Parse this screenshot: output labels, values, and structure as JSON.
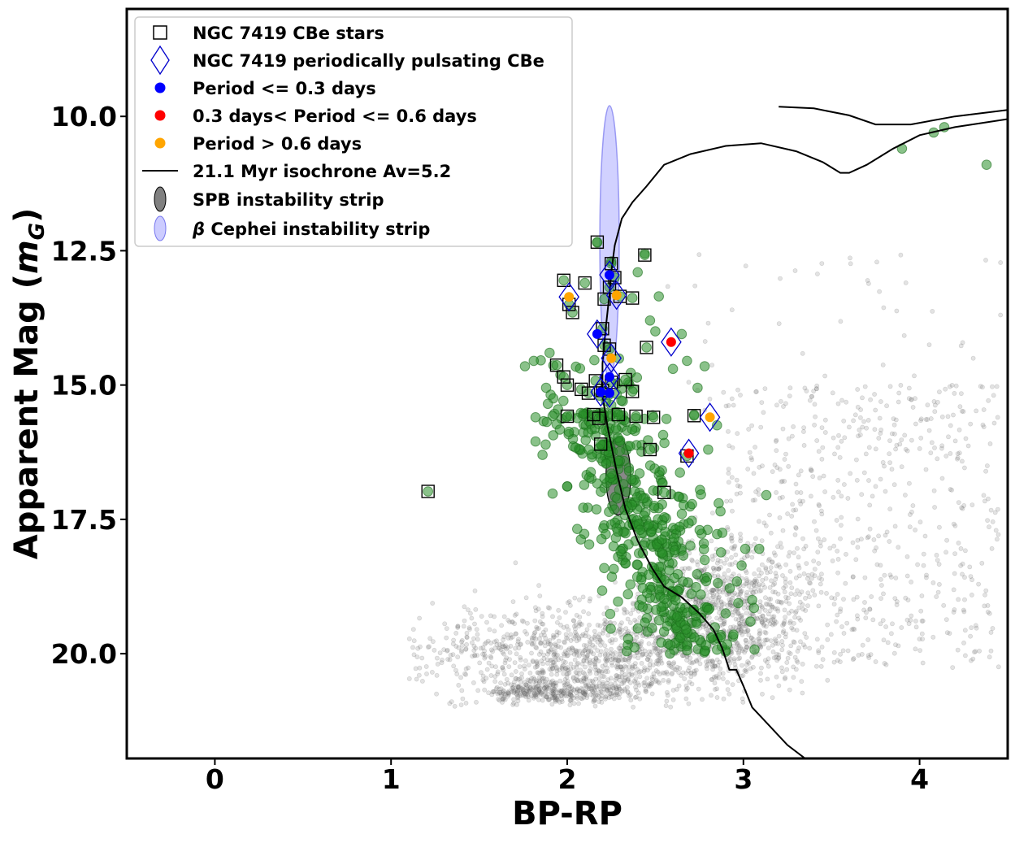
{
  "chart_data": {
    "type": "scatter",
    "xlabel": "BP-RP",
    "ylabel": "Apparent Mag (",
    "ylabel_symbol": "m",
    "ylabel_subscript": "G",
    "ylabel_close": ")",
    "xlim": [
      -0.5,
      4.5
    ],
    "ylim_inverted": [
      8.0,
      21.95
    ],
    "x_ticks": [
      {
        "value": 0,
        "label": "0"
      },
      {
        "value": 1,
        "label": "1"
      },
      {
        "value": 2,
        "label": "2"
      },
      {
        "value": 3,
        "label": "3"
      },
      {
        "value": 4,
        "label": "4"
      }
    ],
    "y_ticks": [
      {
        "value": 10.0,
        "label": "10.0"
      },
      {
        "value": 12.5,
        "label": "12.5"
      },
      {
        "value": 15.0,
        "label": "15.0"
      },
      {
        "value": 17.5,
        "label": "17.5"
      },
      {
        "value": 20.0,
        "label": "20.0"
      }
    ],
    "legend": {
      "position": "upper-left",
      "entries": [
        {
          "label": "NGC 7419 CBe stars",
          "marker": "square-open"
        },
        {
          "label": "NGC 7419 periodically pulsating CBe",
          "marker": "diamond-open"
        },
        {
          "label": "Period <= 0.3 days",
          "marker": "dot-blue"
        },
        {
          "label": "0.3 days< Period <= 0.6 days",
          "marker": "dot-red"
        },
        {
          "label": "Period > 0.6 days",
          "marker": "dot-orange"
        },
        {
          "label": "21.1 Myr isochrone Av=5.2",
          "marker": "line"
        },
        {
          "label": "SPB instability strip",
          "marker": "ellipse-gray"
        },
        {
          "label_prefix": "β",
          "label": " Cephei instability strip",
          "marker": "ellipse-blue"
        }
      ]
    },
    "colors": {
      "field": "#7f7f7f",
      "member": "#2a8f2a",
      "square": "#000000",
      "diamond": "#0000cc",
      "blue": "#0000ff",
      "red": "#ff0000",
      "orange": "#ffa500",
      "isochrone": "#000000",
      "spb": "#555555",
      "beta_cep": "#9999ff"
    },
    "spb_strip": {
      "cx": 2.29,
      "cy": 16.7,
      "rx": 0.07,
      "ry": 0.72
    },
    "beta_cep_strip": {
      "cx": 2.24,
      "cy": 12.35,
      "rx": 0.055,
      "ry": 2.55
    },
    "isochrone_upper": [
      [
        2.25,
        12.9
      ],
      [
        2.27,
        12.4
      ],
      [
        2.31,
        11.9
      ],
      [
        2.37,
        11.6
      ],
      [
        2.45,
        11.3
      ],
      [
        2.55,
        10.9
      ],
      [
        2.7,
        10.7
      ],
      [
        2.9,
        10.55
      ],
      [
        3.1,
        10.5
      ],
      [
        3.3,
        10.65
      ],
      [
        3.45,
        10.85
      ],
      [
        3.55,
        11.05
      ],
      [
        3.6,
        11.05
      ],
      [
        3.7,
        10.9
      ],
      [
        3.85,
        10.6
      ],
      [
        4.0,
        10.35
      ],
      [
        4.2,
        10.2
      ],
      [
        4.5,
        10.05
      ]
    ],
    "isochrone_top": [
      [
        3.2,
        9.82
      ],
      [
        3.4,
        9.85
      ],
      [
        3.6,
        9.98
      ],
      [
        3.75,
        10.15
      ],
      [
        3.95,
        10.15
      ],
      [
        4.2,
        10.0
      ],
      [
        4.5,
        9.88
      ]
    ],
    "isochrone_lower": [
      [
        2.25,
        12.9
      ],
      [
        2.24,
        13.3
      ],
      [
        2.22,
        13.9
      ],
      [
        2.2,
        14.6
      ],
      [
        2.2,
        15.2
      ],
      [
        2.23,
        15.8
      ],
      [
        2.28,
        16.6
      ],
      [
        2.33,
        17.3
      ],
      [
        2.4,
        17.9
      ],
      [
        2.48,
        18.4
      ],
      [
        2.55,
        18.75
      ],
      [
        2.65,
        18.95
      ],
      [
        2.75,
        19.25
      ],
      [
        2.83,
        19.55
      ],
      [
        2.88,
        19.9
      ],
      [
        2.92,
        20.3
      ],
      [
        2.96,
        20.3
      ],
      [
        3.0,
        20.6
      ],
      [
        3.05,
        21.0
      ],
      [
        3.15,
        21.35
      ],
      [
        3.25,
        21.7
      ],
      [
        3.37,
        22.0
      ]
    ],
    "cbe_squares": [
      [
        2.17,
        12.34
      ],
      [
        2.44,
        12.58
      ],
      [
        2.25,
        12.74
      ],
      [
        2.27,
        13.0
      ],
      [
        1.98,
        13.05
      ],
      [
        2.1,
        13.1
      ],
      [
        2.24,
        13.18
      ],
      [
        2.3,
        13.35
      ],
      [
        2.37,
        13.38
      ],
      [
        2.01,
        13.5
      ],
      [
        2.21,
        13.4
      ],
      [
        2.03,
        13.65
      ],
      [
        2.2,
        13.95
      ],
      [
        2.21,
        14.26
      ],
      [
        2.45,
        14.3
      ],
      [
        2.24,
        14.33
      ],
      [
        1.94,
        14.63
      ],
      [
        1.98,
        14.85
      ],
      [
        2.16,
        14.92
      ],
      [
        2.25,
        14.95
      ],
      [
        2.33,
        14.9
      ],
      [
        2.0,
        15.0
      ],
      [
        2.08,
        15.08
      ],
      [
        2.12,
        15.15
      ],
      [
        2.2,
        15.1
      ],
      [
        2.37,
        15.12
      ],
      [
        2.15,
        15.55
      ],
      [
        2.29,
        15.55
      ],
      [
        2.39,
        15.58
      ],
      [
        2.49,
        15.6
      ],
      [
        2.72,
        15.57
      ],
      [
        2.18,
        15.62
      ],
      [
        2.0,
        15.58
      ],
      [
        2.19,
        16.1
      ],
      [
        2.47,
        16.2
      ],
      [
        2.68,
        16.32
      ],
      [
        1.21,
        16.98
      ],
      [
        2.55,
        17.0
      ]
    ],
    "pulsating_cbe": [
      {
        "x": 2.24,
        "y": 12.95,
        "period": "short"
      },
      {
        "x": 2.28,
        "y": 13.33,
        "period": "long"
      },
      {
        "x": 2.01,
        "y": 13.36,
        "period": "long"
      },
      {
        "x": 2.17,
        "y": 14.05,
        "period": "short"
      },
      {
        "x": 2.59,
        "y": 14.2,
        "period": "mid"
      },
      {
        "x": 2.25,
        "y": 14.5,
        "period": "long"
      },
      {
        "x": 2.24,
        "y": 14.85,
        "period": "short"
      },
      {
        "x": 2.19,
        "y": 15.13,
        "period": "short"
      },
      {
        "x": 2.24,
        "y": 15.15,
        "period": "short"
      },
      {
        "x": 2.81,
        "y": 15.6,
        "period": "long"
      },
      {
        "x": 2.69,
        "y": 16.27,
        "period": "mid"
      }
    ],
    "member_extra": [
      [
        3.9,
        10.6
      ],
      [
        4.08,
        10.3
      ],
      [
        4.14,
        10.2
      ],
      [
        4.38,
        10.9
      ],
      [
        2.44,
        12.55
      ],
      [
        2.17,
        12.35
      ],
      [
        2.25,
        12.7
      ],
      [
        2.4,
        12.9
      ],
      [
        2.52,
        13.35
      ],
      [
        2.47,
        13.8
      ],
      [
        2.65,
        14.05
      ],
      [
        2.5,
        14.0
      ],
      [
        2.68,
        14.55
      ],
      [
        2.78,
        14.65
      ],
      [
        2.6,
        14.7
      ],
      [
        1.81,
        14.55
      ],
      [
        1.76,
        14.65
      ],
      [
        1.9,
        14.4
      ],
      [
        1.88,
        15.05
      ],
      [
        1.89,
        15.35
      ],
      [
        1.82,
        15.6
      ],
      [
        1.82,
        16.05
      ],
      [
        1.86,
        16.3
      ],
      [
        2.74,
        15.05
      ],
      [
        2.72,
        15.55
      ],
      [
        2.85,
        15.75
      ],
      [
        2.8,
        16.2
      ],
      [
        2.86,
        17.2
      ],
      [
        2.87,
        17.35
      ],
      [
        2.88,
        17.75
      ],
      [
        3.13,
        17.05
      ],
      [
        3.09,
        18.05
      ],
      [
        3.01,
        18.05
      ],
      [
        3.05,
        19.0
      ],
      [
        3.06,
        19.15
      ],
      [
        3.04,
        19.4
      ]
    ]
  }
}
